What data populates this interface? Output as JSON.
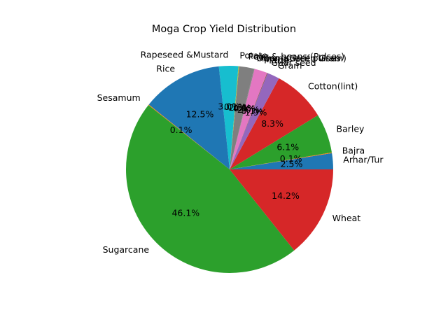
{
  "chart_data": {
    "type": "pie",
    "title": "Moga Crop Yield Distribution",
    "start_angle_deg": 0,
    "direction": "counterclockwise",
    "slices": [
      {
        "label": "Arhar/Tur",
        "value": 2.5,
        "pct_label": "2.5%",
        "color": "#1f77b4"
      },
      {
        "label": "Bajra",
        "value": 0.1,
        "pct_label": "0.1%",
        "color": "#ff7f0e"
      },
      {
        "label": "Barley",
        "value": 6.1,
        "pct_label": "6.1%",
        "color": "#2ca02c"
      },
      {
        "label": "Cotton(lint)",
        "value": 8.3,
        "pct_label": "8.3%",
        "color": "#d62728"
      },
      {
        "label": "Gram",
        "value": 1.9,
        "pct_label": "1.9%",
        "color": "#9467bd"
      },
      {
        "label": "Guar seed",
        "value": 0.1,
        "pct_label": "0.1%",
        "color": "#8c564b"
      },
      {
        "label": "Maize",
        "value": 2.0,
        "pct_label": "2.0%",
        "color": "#e377c2"
      },
      {
        "label": "Moong(Green Gram)",
        "value": 0.1,
        "pct_label": "0.1%",
        "color": "#7f7f7f"
      },
      {
        "label": "Other Kharif pulses",
        "value": 0.0,
        "pct_label": "0.0%",
        "color": "#bcbd22"
      },
      {
        "label": "Peas & beans (Pulses)",
        "value": 2.3,
        "pct_label": "2.3%",
        "color": "#7f7f7f"
      },
      {
        "label": "Potato",
        "value": 0.1,
        "pct_label": "0.1%",
        "color": "#bcbd22"
      },
      {
        "label": "Rapeseed &Mustard",
        "value": 3.0,
        "pct_label": "3.0%",
        "color": "#17becf"
      },
      {
        "label": "Rice",
        "value": 12.5,
        "pct_label": "12.5%",
        "color": "#1f77b4"
      },
      {
        "label": "Sesamum",
        "value": 0.1,
        "pct_label": "0.1%",
        "color": "#ff7f0e"
      },
      {
        "label": "Sugarcane",
        "value": 46.1,
        "pct_label": "46.1%",
        "color": "#2ca02c"
      },
      {
        "label": "Wheat",
        "value": 14.2,
        "pct_label": "14.2%",
        "color": "#d62728"
      }
    ]
  }
}
